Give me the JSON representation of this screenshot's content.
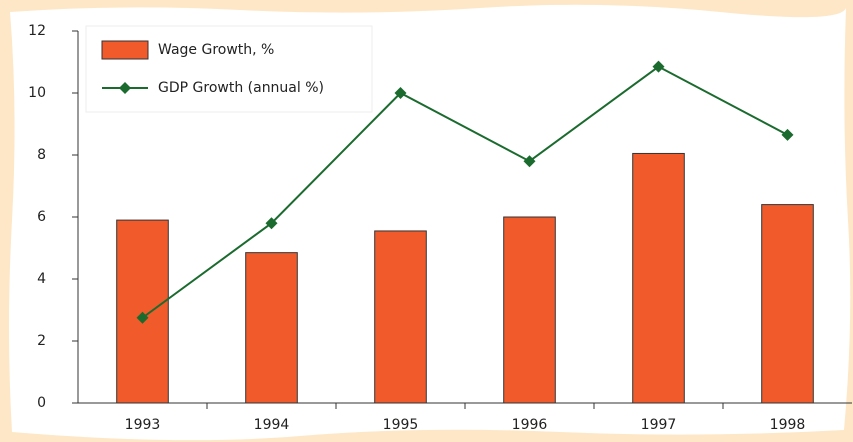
{
  "chart_data": {
    "type": "bar",
    "categories": [
      "1993",
      "1994",
      "1995",
      "1996",
      "1997",
      "1998"
    ],
    "series": [
      {
        "name": "Wage Growth, %",
        "type": "bar",
        "color": "#f15a2b",
        "values": [
          5.9,
          4.85,
          5.55,
          6.0,
          8.05,
          6.4
        ]
      },
      {
        "name": "GDP Growth (annual %)",
        "type": "line",
        "color": "#1b6b2f",
        "values": [
          2.75,
          5.8,
          10.0,
          7.8,
          10.85,
          8.65
        ]
      }
    ],
    "ylim": [
      0,
      12
    ],
    "yticks": [
      0,
      2,
      4,
      6,
      8,
      10,
      12
    ],
    "legend": "upper left"
  }
}
